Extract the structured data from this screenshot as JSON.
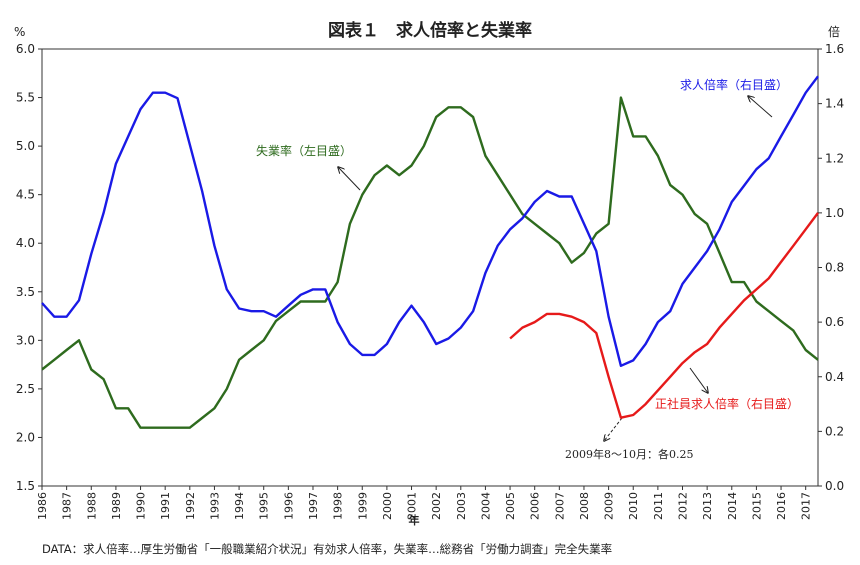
{
  "chart_data": {
    "type": "line",
    "title": "図表１　求人倍率と失業率",
    "ylabel": "%",
    "y2label": "倍",
    "xlabel": "年",
    "x": [
      1986,
      1986.5,
      1987,
      1987.5,
      1988,
      1988.5,
      1989,
      1989.5,
      1990,
      1990.5,
      1991,
      1991.5,
      1992,
      1992.5,
      1993,
      1993.5,
      1994,
      1994.5,
      1995,
      1995.5,
      1996,
      1996.5,
      1997,
      1997.5,
      1998,
      1998.5,
      1999,
      1999.5,
      2000,
      2000.5,
      2001,
      2001.5,
      2002,
      2002.5,
      2003,
      2003.5,
      2004,
      2004.5,
      2005,
      2005.5,
      2006,
      2006.5,
      2007,
      2007.5,
      2008,
      2008.5,
      2009,
      2009.5,
      2010,
      2010.5,
      2011,
      2011.5,
      2012,
      2012.5,
      2013,
      2013.5,
      2014,
      2014.5,
      2015,
      2015.5,
      2016,
      2016.5,
      2017,
      2017.5
    ],
    "xlim": [
      1986,
      2017.5
    ],
    "xticks": [
      1986,
      1987,
      1988,
      1989,
      1990,
      1991,
      1992,
      1993,
      1994,
      1995,
      1996,
      1997,
      1998,
      1999,
      2000,
      2001,
      2002,
      2003,
      2004,
      2005,
      2006,
      2007,
      2008,
      2009,
      2010,
      2011,
      2012,
      2013,
      2014,
      2015,
      2016,
      2017
    ],
    "ylim": [
      1.5,
      6.0
    ],
    "yticks": [
      1.5,
      {
        "value": 2,
        "label": "2.0"
      },
      2.5,
      {
        "value": 3,
        "label": "3.0"
      },
      3.5,
      {
        "value": 4,
        "label": "4.0"
      },
      4.5,
      {
        "value": 5,
        "label": "5.0"
      },
      5.5,
      {
        "value": 6,
        "label": "6.0"
      }
    ],
    "y2lim": [
      0,
      1.6
    ],
    "y2ticks": [
      {
        "value": 0,
        "label": "0.0"
      },
      0.2,
      0.4,
      0.6,
      0.8,
      {
        "value": 1,
        "label": "1.0"
      },
      1.2,
      1.4,
      1.6
    ],
    "series": [
      {
        "name": "失業率（左目盛）",
        "color": "#2e6b1e",
        "axis": "y",
        "values": [
          2.7,
          2.8,
          2.9,
          3.0,
          2.7,
          2.6,
          2.3,
          2.3,
          2.1,
          2.1,
          2.1,
          2.1,
          2.1,
          2.2,
          2.3,
          2.5,
          2.8,
          2.9,
          3.0,
          3.2,
          3.3,
          3.4,
          3.4,
          3.4,
          3.6,
          4.2,
          4.5,
          4.7,
          4.8,
          4.7,
          4.8,
          5.0,
          5.3,
          5.4,
          5.4,
          5.3,
          4.9,
          4.7,
          4.5,
          4.3,
          4.2,
          4.1,
          4.0,
          3.8,
          3.9,
          4.1,
          4.2,
          5.5,
          5.1,
          5.1,
          4.9,
          4.6,
          4.5,
          4.3,
          4.2,
          3.9,
          3.6,
          3.6,
          3.4,
          3.3,
          3.2,
          3.1,
          2.9,
          2.8
        ]
      },
      {
        "name": "求人倍率（右目盛）",
        "color": "#1a1ae6",
        "axis": "y2",
        "values": [
          0.67,
          0.62,
          0.62,
          0.68,
          0.85,
          1.0,
          1.18,
          1.28,
          1.38,
          1.44,
          1.44,
          1.42,
          1.25,
          1.08,
          0.88,
          0.72,
          0.65,
          0.64,
          0.64,
          0.62,
          0.66,
          0.7,
          0.72,
          0.72,
          0.6,
          0.52,
          0.48,
          0.48,
          0.52,
          0.6,
          0.66,
          0.6,
          0.52,
          0.54,
          0.58,
          0.64,
          0.78,
          0.88,
          0.94,
          0.98,
          1.04,
          1.08,
          1.06,
          1.06,
          0.96,
          0.86,
          0.62,
          0.44,
          0.46,
          0.52,
          0.6,
          0.64,
          0.74,
          0.8,
          0.86,
          0.94,
          1.04,
          1.1,
          1.16,
          1.2,
          1.28,
          1.36,
          1.44,
          1.5
        ]
      },
      {
        "name": "正社員求人倍率（右目盛）",
        "color": "#e61a1a",
        "axis": "y2",
        "values": [
          null,
          null,
          null,
          null,
          null,
          null,
          null,
          null,
          null,
          null,
          null,
          null,
          null,
          null,
          null,
          null,
          null,
          null,
          null,
          null,
          null,
          null,
          null,
          null,
          null,
          null,
          null,
          null,
          null,
          null,
          null,
          null,
          null,
          null,
          null,
          null,
          null,
          null,
          0.54,
          0.58,
          0.6,
          0.63,
          0.63,
          0.62,
          0.6,
          0.56,
          0.4,
          0.25,
          0.26,
          0.3,
          0.35,
          0.4,
          0.45,
          0.49,
          0.52,
          0.58,
          0.63,
          0.68,
          0.72,
          0.76,
          0.82,
          0.88,
          0.94,
          1.0
        ]
      }
    ],
    "annotation": "2009年8～10月：各0.25",
    "source": "DATA：求人倍率…厚生労働省「一般職業紹介状況」有効求人倍率，失業率…総務省「労働力調査」完全失業率"
  }
}
